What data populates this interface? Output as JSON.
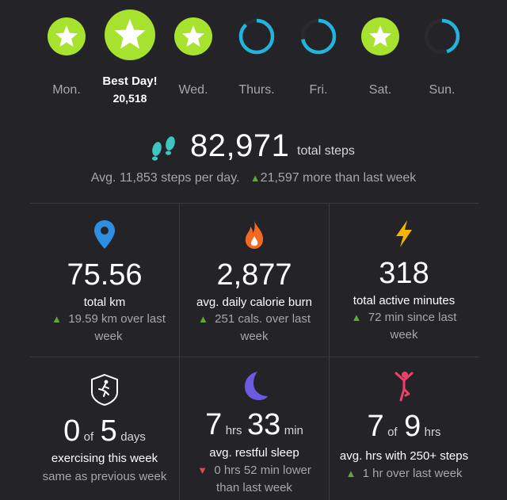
{
  "week": {
    "days": [
      {
        "label": "Mon.",
        "status": "goal-met",
        "progress": 1.0
      },
      {
        "label": "Best Day!",
        "value": "20,518",
        "status": "best",
        "progress": 1.0
      },
      {
        "label": "Wed.",
        "status": "goal-met",
        "progress": 1.0
      },
      {
        "label": "Thurs.",
        "status": "partial",
        "progress": 0.88
      },
      {
        "label": "Fri.",
        "status": "partial",
        "progress": 0.72
      },
      {
        "label": "Sat.",
        "status": "goal-met",
        "progress": 1.0
      },
      {
        "label": "Sun.",
        "status": "partial",
        "progress": 0.45
      }
    ]
  },
  "summary": {
    "total": "82,971",
    "total_unit": "total steps",
    "avg_text": "Avg. 11,853 steps per day.",
    "delta_text": "21,597 more than last week"
  },
  "tiles": {
    "distance": {
      "icon": "map-pin-icon",
      "value": "75.56",
      "caption": "total km",
      "delta": "19.59 km over last week"
    },
    "calories": {
      "icon": "flame-icon",
      "value": "2,877",
      "caption": "avg. daily calorie burn",
      "delta": "251 cals. over last week"
    },
    "active": {
      "icon": "lightning-icon",
      "value": "318",
      "caption": "total active minutes",
      "delta": "72 min since last week"
    },
    "exercise": {
      "icon": "runner-badge-icon",
      "num": "0",
      "of": "of",
      "den": "5",
      "unit": "days",
      "caption": "exercising this week",
      "sub": "same as previous week"
    },
    "sleep": {
      "icon": "moon-icon",
      "hrs": "7",
      "hrs_unit": "hrs",
      "min": "33",
      "min_unit": "min",
      "caption": "avg. restful sleep",
      "delta": "0 hrs 52 min lower than last week"
    },
    "hourly": {
      "icon": "person-pose-icon",
      "num": "7",
      "of": "of",
      "den": "9",
      "unit": "hrs",
      "caption": "avg. hrs with 250+ steps",
      "delta": "1 hr over last week"
    }
  },
  "colors": {
    "background": "#232328",
    "goal_green": "#a6e22e",
    "ring_blue": "#22b4dc",
    "up_green": "#5fa83a",
    "down_red": "#e04a4a",
    "pin_blue": "#2e8fe0",
    "flame_orange": "#f26a22",
    "bolt_yellow": "#f5b400",
    "moon_purple": "#6a5be0",
    "pose_pink": "#f0406a"
  }
}
